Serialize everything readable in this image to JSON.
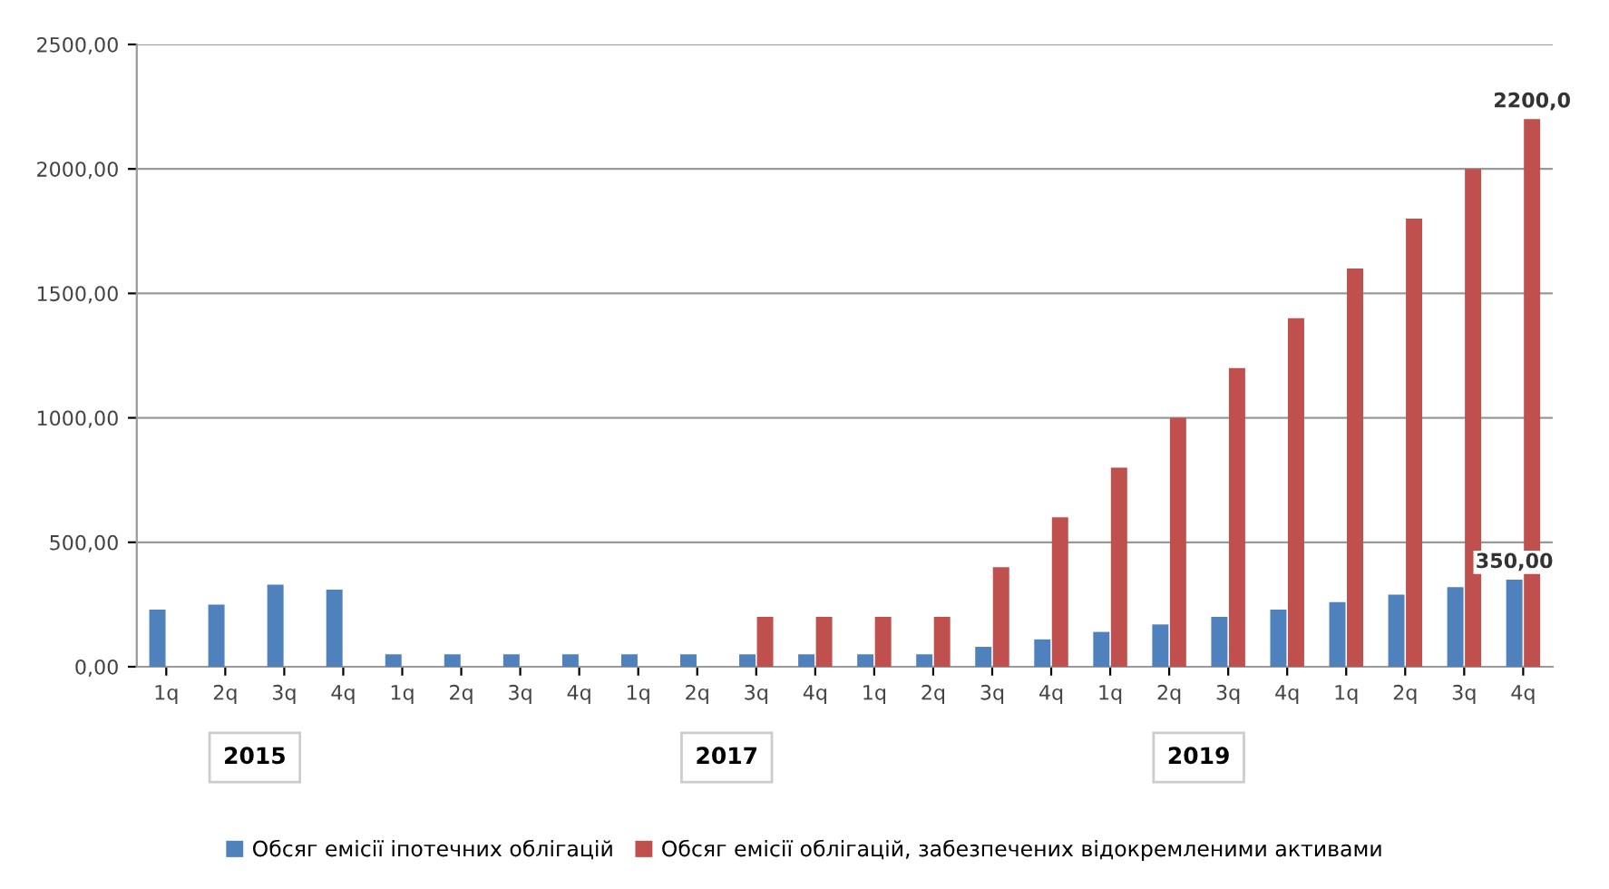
{
  "chart_data": {
    "type": "bar",
    "categories": [
      "1q",
      "2q",
      "3q",
      "4q",
      "1q",
      "2q",
      "3q",
      "4q",
      "1q",
      "2q",
      "3q",
      "4q",
      "1q",
      "2q",
      "3q",
      "4q",
      "1q",
      "2q",
      "3q",
      "4q",
      "1q",
      "2q",
      "3q",
      "4q"
    ],
    "series": [
      {
        "name": "Обсяг емісії іпотечних облігацій",
        "color": "#4f81bd",
        "values": [
          230,
          250,
          330,
          310,
          50,
          50,
          50,
          50,
          50,
          50,
          50,
          50,
          50,
          50,
          80,
          110,
          140,
          170,
          200,
          230,
          260,
          290,
          320,
          350
        ],
        "value_labels": [
          null,
          null,
          null,
          null,
          null,
          null,
          null,
          null,
          null,
          null,
          null,
          null,
          null,
          null,
          null,
          null,
          null,
          null,
          null,
          null,
          null,
          null,
          null,
          "350,00"
        ]
      },
      {
        "name": "Обсяг емісії облігацій, забезпечених відокремленими активами",
        "color": "#c0504d",
        "values": [
          null,
          null,
          null,
          null,
          null,
          null,
          null,
          null,
          null,
          null,
          200,
          200,
          200,
          200,
          400,
          600,
          800,
          1000,
          1200,
          1400,
          1600,
          1800,
          2000,
          2200
        ],
        "value_labels": [
          null,
          null,
          null,
          null,
          null,
          null,
          null,
          null,
          null,
          null,
          null,
          null,
          null,
          null,
          null,
          null,
          null,
          null,
          null,
          null,
          null,
          null,
          null,
          "2200,0"
        ]
      }
    ],
    "annotations": [
      "2015",
      "2017",
      "2019"
    ],
    "ylim": [
      0,
      2500
    ],
    "yticks": [
      {
        "value": 0,
        "label": "0,00"
      },
      {
        "value": 500,
        "label": "500,00"
      },
      {
        "value": 1000,
        "label": "1000,00"
      },
      {
        "value": 1500,
        "label": "1500,00"
      },
      {
        "value": 2000,
        "label": "2000,00"
      },
      {
        "value": 2500,
        "label": "2500,00"
      }
    ],
    "grid": "y",
    "legend": "bottom"
  }
}
